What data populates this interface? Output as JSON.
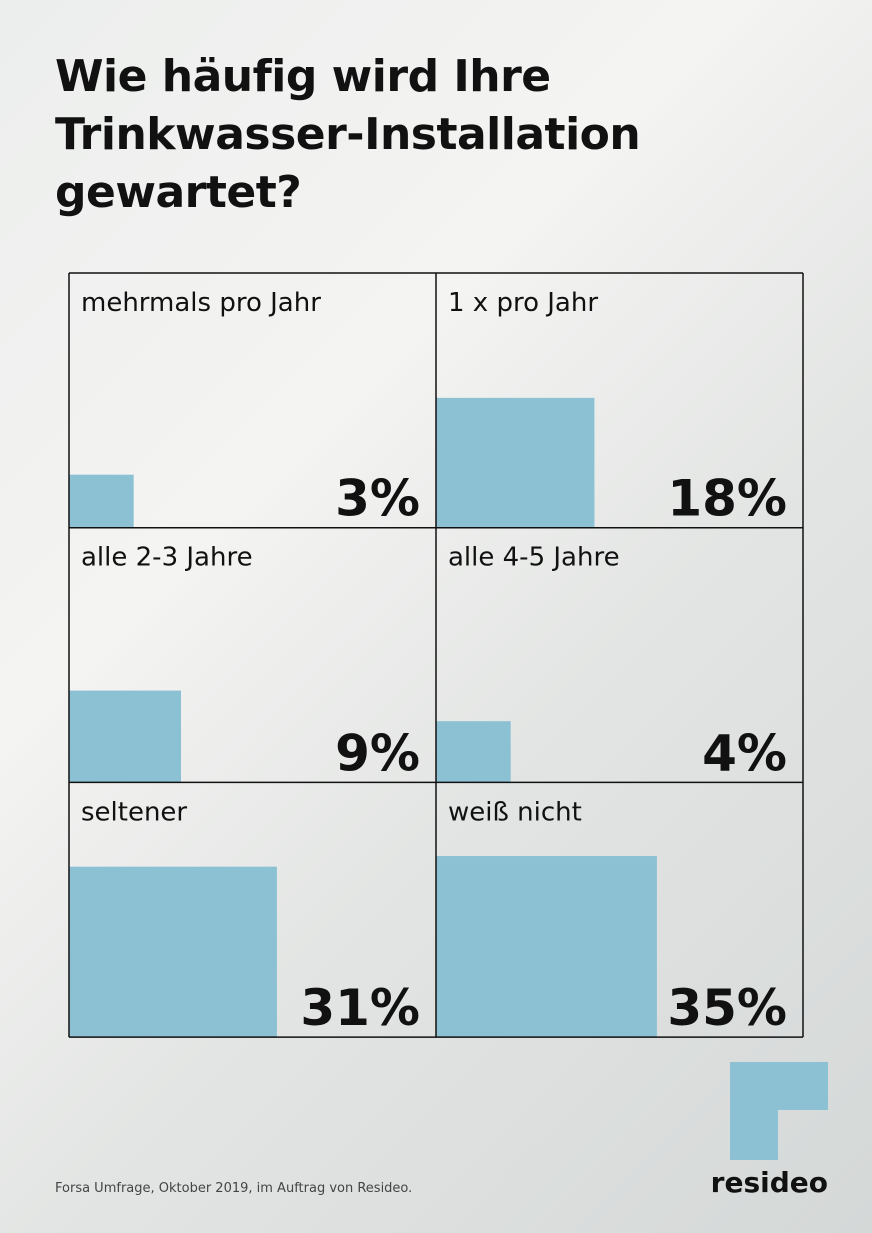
{
  "chart_data": {
    "type": "bar",
    "title": "Wie häufig wird Ihre Trinkwasser-Installation gewartet?",
    "categories": [
      "mehrmals pro Jahr",
      "1 x pro Jahr",
      "alle 2-3 Jahre",
      "alle 4-5 Jahre",
      "seltener",
      "weiß nicht"
    ],
    "values": [
      3,
      18,
      9,
      4,
      31,
      35
    ],
    "value_labels": [
      "3%",
      "18%",
      "9%",
      "4%",
      "31%",
      "35%"
    ],
    "color": "#8bc1d3",
    "footnote": "Forsa Umfrage, Oktober 2019, im Auftrag von Resideo.",
    "brand": "resideo"
  }
}
